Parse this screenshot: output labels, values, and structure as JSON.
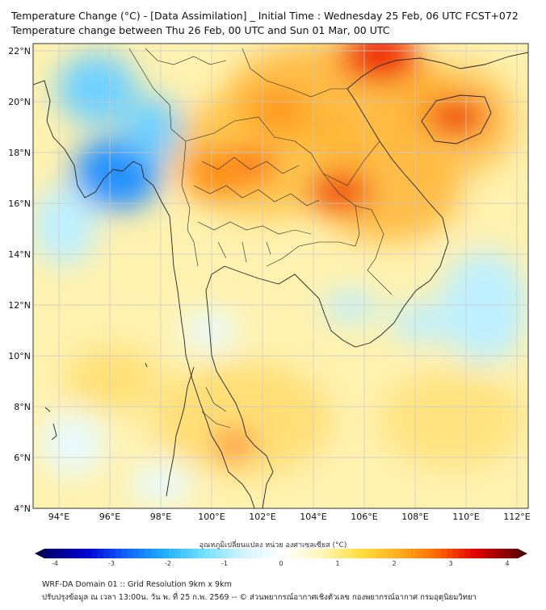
{
  "header": {
    "title_line1": "Temperature Change (°C) - [Data Assimilation] _ Initial Time : Wednesday 25 Feb, 06 UTC FCST+072",
    "title_line2": "Temperature change between Thu 26 Feb, 00 UTC and Sun 01 Mar, 00 UTC"
  },
  "map": {
    "lon_ticks": [
      "94°E",
      "96°E",
      "98°E",
      "100°E",
      "102°E",
      "104°E",
      "106°E",
      "108°E",
      "110°E",
      "112°E"
    ],
    "lat_ticks": [
      "4°N",
      "6°N",
      "8°N",
      "10°N",
      "12°N",
      "14°N",
      "16°N",
      "18°N",
      "20°N",
      "22°N"
    ],
    "lon_range": [
      93,
      112.5
    ],
    "lat_range": [
      4,
      22.3
    ],
    "field": {
      "units": "°C",
      "warm_spots": [
        {
          "lon": 106.5,
          "lat": 22.0,
          "value": 3.2
        },
        {
          "lon": 109.6,
          "lat": 19.3,
          "value": 3.0
        },
        {
          "lon": 105.8,
          "lat": 16.4,
          "value": 2.9
        },
        {
          "lon": 101.6,
          "lat": 17.5,
          "value": 2.6
        },
        {
          "lon": 101.3,
          "lat": 6.4,
          "value": 2.8
        },
        {
          "lon": 102.5,
          "lat": 19.5,
          "value": 2.0
        }
      ],
      "cool_spots": [
        {
          "lon": 96.4,
          "lat": 17.0,
          "value": -1.5
        },
        {
          "lon": 95.5,
          "lat": 20.5,
          "value": -0.9
        },
        {
          "lon": 111.0,
          "lat": 12.0,
          "value": -0.6
        },
        {
          "lon": 104.5,
          "lat": 11.5,
          "value": -0.5
        }
      ]
    }
  },
  "colorbar": {
    "title": "อุณหภูมิเปลี่ยนแปลง หน่วย องศาเซลเซียส (°C)",
    "ticks": [
      "-4",
      "-3",
      "-2",
      "-1",
      "0",
      "1",
      "2",
      "3",
      "4"
    ],
    "min": -4,
    "max": 4,
    "colors": [
      "#000070",
      "#0000d0",
      "#1060ff",
      "#20b0ff",
      "#70e0ff",
      "#d0f4ff",
      "#ffffff",
      "#fff6c0",
      "#ffe040",
      "#ffb020",
      "#ff6a00",
      "#e00000",
      "#700000"
    ]
  },
  "footer": {
    "line1": "WRF-DA Domain 01 :: Grid Resolution 9km x 9km",
    "line2": "ปรับปรุงข้อมูล ณ เวลา 13:00น. วัน พ. ที่ 25 ก.พ. 2569 -- © ส่วนพยากรณ์อากาศเชิงตัวเลข กองพยากรณ์อากาศ กรมอุตุนิยมวิทยา"
  }
}
